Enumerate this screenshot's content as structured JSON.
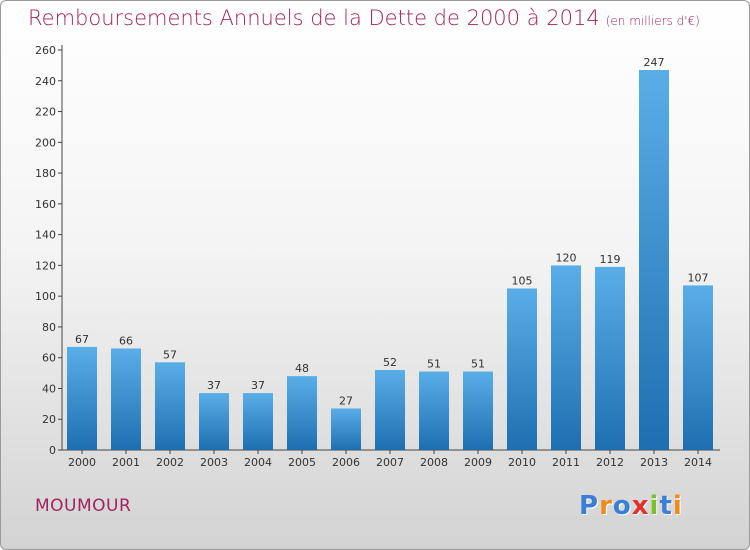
{
  "title": "Remboursements Annuels de la Dette de 2000 à 2014",
  "subtitle": "(en milliers d'€)",
  "commune": "MOUMOUR",
  "logo": {
    "letters": [
      "P",
      "r",
      "o",
      "x",
      "i",
      "t",
      "i"
    ],
    "colors": [
      "#3a7fd5",
      "#f08a1c",
      "#3a7fd5",
      "#e0312a",
      "#7bbf2a",
      "#3a7fd5",
      "#f08a1c"
    ]
  },
  "colors": {
    "bar_top": "#5aaee8",
    "bar_bottom": "#1f6fb0",
    "title": "#a0245f"
  },
  "chart_data": {
    "type": "bar",
    "title": "Remboursements Annuels de la Dette de 2000 à 2014",
    "categories": [
      "2000",
      "2001",
      "2002",
      "2003",
      "2004",
      "2005",
      "2006",
      "2007",
      "2008",
      "2009",
      "2010",
      "2011",
      "2012",
      "2013",
      "2014"
    ],
    "values": [
      67,
      66,
      57,
      37,
      37,
      48,
      27,
      52,
      51,
      51,
      105,
      120,
      119,
      247,
      107
    ],
    "ylim": [
      0,
      260
    ],
    "yticks": [
      0,
      20,
      40,
      60,
      80,
      100,
      120,
      140,
      160,
      180,
      200,
      220,
      240,
      260
    ],
    "grid": false,
    "xlabel": "",
    "ylabel": ""
  }
}
